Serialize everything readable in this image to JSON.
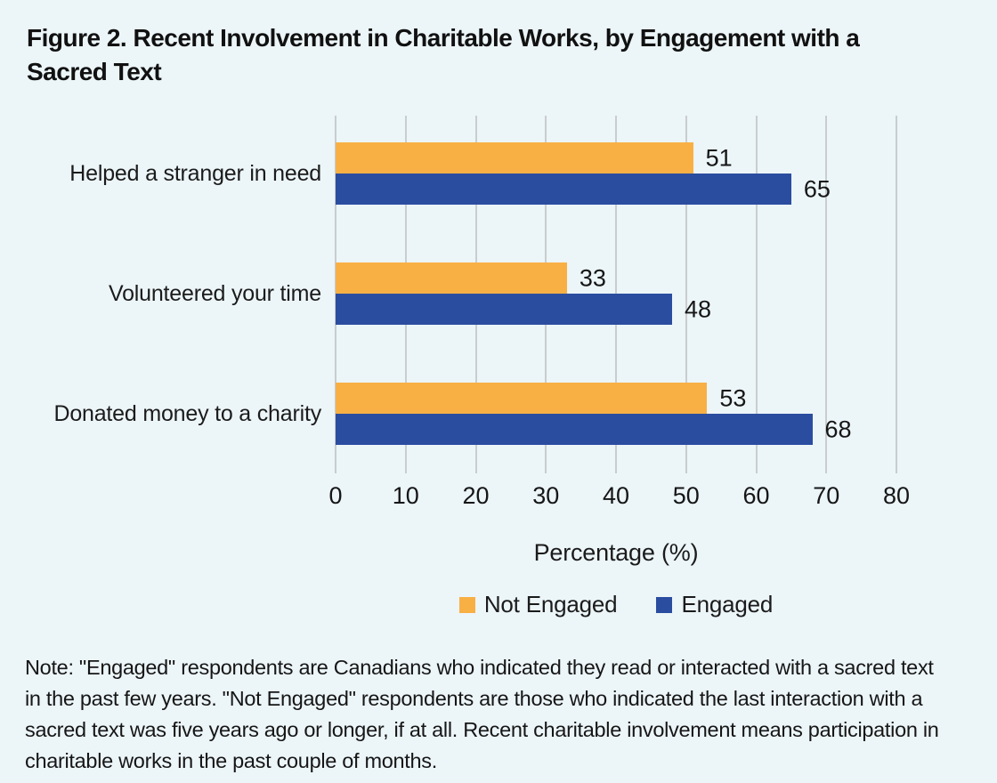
{
  "figure": {
    "title_line1": "Figure 2. Recent Involvement in Charitable Works, by Engagement with a",
    "title_line2": "Sacred Text"
  },
  "chart_data": {
    "type": "bar",
    "orientation": "horizontal",
    "title": "Figure 2. Recent Involvement in Charitable Works, by Engagement with a Sacred Text",
    "categories": [
      "Helped a stranger in need",
      "Volunteered your time",
      "Donated money to a charity"
    ],
    "series": [
      {
        "name": "Not Engaged",
        "color": "#f8b045",
        "values": [
          51,
          33,
          53
        ]
      },
      {
        "name": "Engaged",
        "color": "#2b4da0",
        "values": [
          65,
          48,
          68
        ]
      }
    ],
    "xlabel": "Percentage (%)",
    "ylabel": "",
    "xlim": [
      0,
      80
    ],
    "xticks": [
      0,
      10,
      20,
      30,
      40,
      50,
      60,
      70,
      80
    ],
    "grid": "vertical",
    "legend_position": "bottom",
    "data_labels": true
  },
  "note": {
    "lines": [
      "Note: \"Engaged\" respondents are Canadians who indicated they read or interacted with a sacred text",
      "in the past few years. \"Not Engaged\" respondents are those who indicated the last interaction with a",
      "sacred text was five years ago or longer, if at all. Recent charitable involvement means participation in",
      "charitable works in the past couple of months."
    ]
  },
  "colors": {
    "background": "#ecf5f8",
    "not_engaged": "#f8b045",
    "engaged": "#2b4da0",
    "gridline": "#c9cdce",
    "text": "#1b1b1b"
  }
}
